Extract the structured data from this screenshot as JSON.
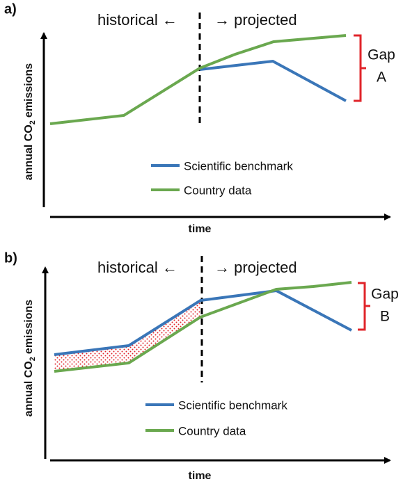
{
  "panels": [
    {
      "label": "a)",
      "historical": "historical ←",
      "projected": "→ projected",
      "gap_title": "Gap",
      "gap_letter": "A",
      "y_label": {
        "main": "annual CO",
        "sub": "2",
        "rest": "emissions"
      },
      "x_label": "time",
      "legend": [
        "Scientific benchmark",
        "Country data"
      ]
    },
    {
      "label": "b)",
      "historical": "historical ←",
      "projected": "→ projected",
      "gap_title": "Gap",
      "gap_letter": "B",
      "y_label": {
        "main": "annual CO",
        "sub": "2",
        "rest": "emissions"
      },
      "x_label": "time",
      "legend": [
        "Scientific benchmark",
        "Country data"
      ]
    }
  ]
}
